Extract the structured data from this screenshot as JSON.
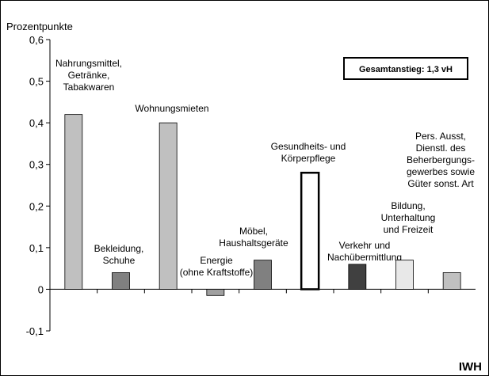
{
  "chart_data": {
    "type": "bar",
    "y_label": "Prozentpunkte",
    "annotation": "Gesamtanstieg: 1,3 vH",
    "source": "IWH",
    "categories": [
      "Nahrungsmittel,\nGetränke,\nTabakwaren",
      "Bekleidung,\nSchuhe",
      "Wohnungsmieten",
      "Energie\n(ohne Kraftstoffe)",
      "Möbel,\nHaushaltsgeräte",
      "Gesundheits- und\nKörperpflege",
      "Verkehr und\nNachübermittlung",
      "Bildung,\nUnterhaltung\nund Freizeit",
      "Pers. Ausst,\nDienstl. des\nBeherbergungs-\ngewerbes sowie\nGüter sonst. Art"
    ],
    "values": [
      0.42,
      0.04,
      0.4,
      -0.015,
      0.07,
      0.28,
      0.06,
      0.07,
      0.04
    ],
    "colors": [
      "#c0c0c0",
      "#808080",
      "#c0c0c0",
      "#a0a0a0",
      "#808080",
      "#ffffff",
      "#404040",
      "#e8e8e8",
      "#c0c0c0"
    ],
    "ylim": [
      -0.1,
      0.6
    ],
    "yticks": [
      {
        "value": -0.1,
        "label": "-0,1"
      },
      0,
      {
        "value": 0.1,
        "label": "0,1"
      },
      {
        "value": 0.2,
        "label": "0,2"
      },
      {
        "value": 0.3,
        "label": "0,3"
      },
      {
        "value": 0.4,
        "label": "0,4"
      },
      {
        "value": 0.5,
        "label": "0,5"
      },
      {
        "value": 0.6,
        "label": "0,6"
      }
    ],
    "grid": false
  }
}
